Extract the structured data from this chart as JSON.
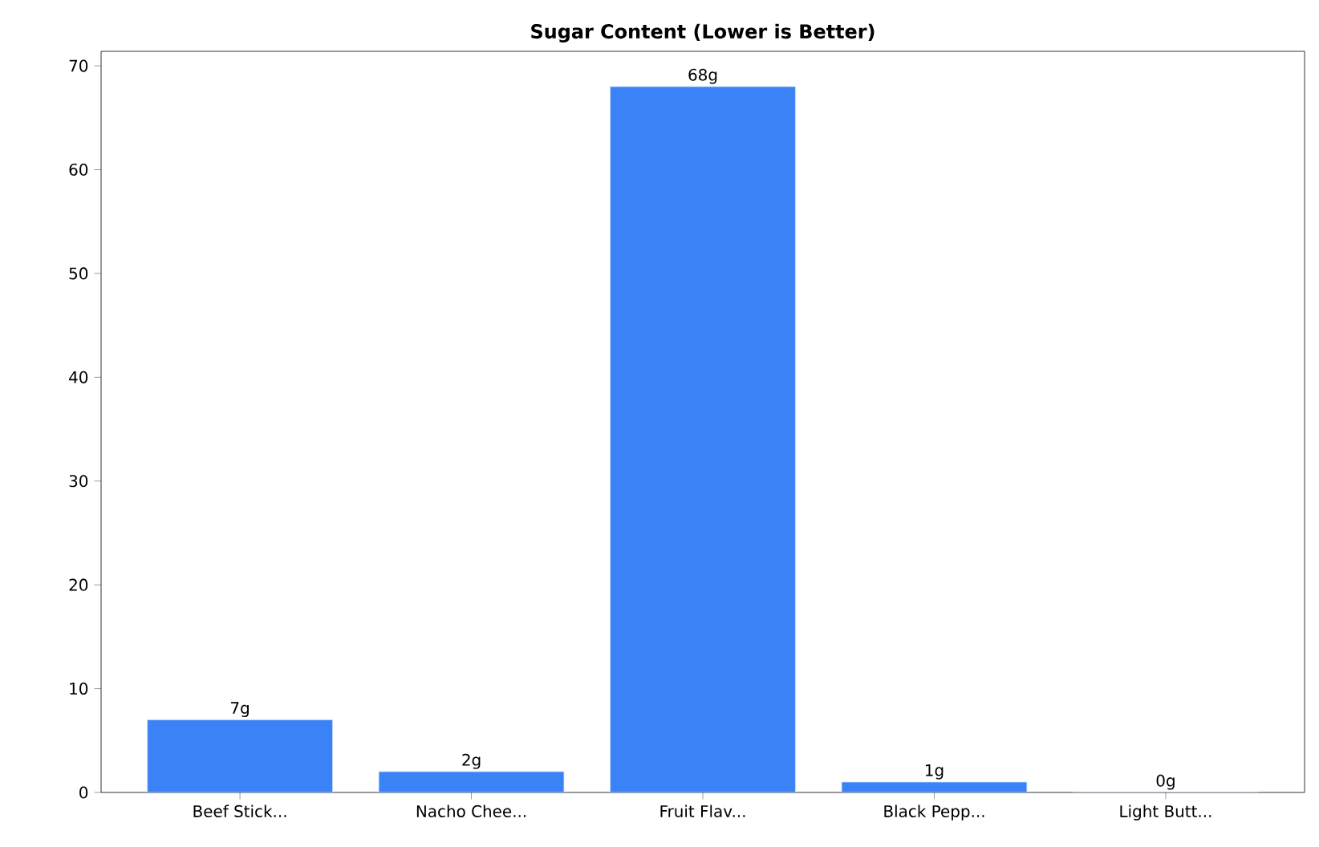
{
  "chart_data": {
    "type": "bar",
    "title": "Sugar Content (Lower is Better)",
    "categories": [
      "Beef Stick...",
      "Nacho Chee...",
      "Fruit Flav...",
      "Black Pepp...",
      "Light Butt..."
    ],
    "values": [
      7,
      2,
      68,
      1,
      0
    ],
    "value_labels": [
      "7g",
      "2g",
      "68g",
      "1g",
      "0g"
    ],
    "color": "#3b82f6",
    "ylim": [
      0,
      71.4
    ],
    "yticks": [
      0,
      10,
      20,
      30,
      40,
      50,
      60,
      70
    ],
    "grid": false
  }
}
